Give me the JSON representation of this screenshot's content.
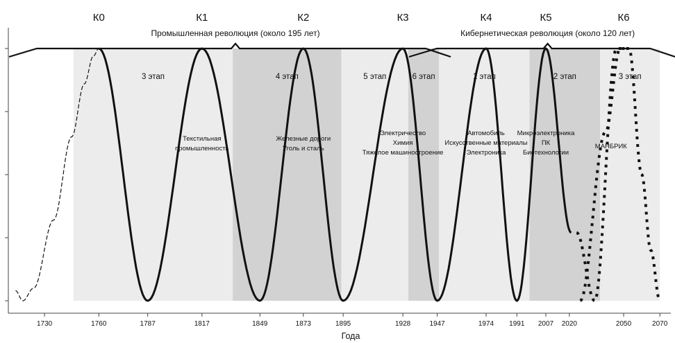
{
  "chart_data": {
    "type": "line",
    "title": "",
    "xlabel": "Года",
    "ylabel": "",
    "xlim": [
      1710,
      2073
    ],
    "ylim": [
      0,
      1
    ],
    "x_ticks": [
      1730,
      1760,
      1787,
      1817,
      1849,
      1873,
      1895,
      1928,
      1947,
      1974,
      1991,
      2007,
      2020,
      2050,
      2070
    ],
    "y_ticks": [
      0,
      0.25,
      0.5,
      0.75,
      1
    ],
    "waves": [
      {
        "label": "К0",
        "peak": 1760
      },
      {
        "label": "К1",
        "peak": 1817
      },
      {
        "label": "К2",
        "peak": 1873
      },
      {
        "label": "К3",
        "peak": 1928
      },
      {
        "label": "К4",
        "peak": 1974
      },
      {
        "label": "К5",
        "peak": 2007
      },
      {
        "label": "К6",
        "peak": 2050
      }
    ],
    "revolutions": [
      {
        "label": "Промышленная революция (около 195 лет)",
        "start": 1725,
        "end": 1946
      },
      {
        "label": "Кибернетическая революция (около 120 лет)",
        "start": 1946,
        "end": 2070
      }
    ],
    "stages": [
      {
        "label": "3 этап",
        "start": 1746,
        "end": 1834,
        "shade": "#ececec"
      },
      {
        "label": "4 этап",
        "start": 1834,
        "end": 1894,
        "shade": "#d2d2d2"
      },
      {
        "label": "5 этап",
        "start": 1894,
        "end": 1931,
        "shade": "#ececec"
      },
      {
        "label": "6 этап",
        "start": 1931,
        "end": 1948,
        "shade": "#d2d2d2"
      },
      {
        "label": "1 этап",
        "start": 1948,
        "end": 1998,
        "shade": "#ececec"
      },
      {
        "label": "2 этап",
        "start": 1998,
        "end": 2037,
        "shade": "#d2d2d2"
      },
      {
        "label": "3 этап",
        "start": 2037,
        "end": 2070,
        "shade": "#ececec"
      }
    ],
    "industries": [
      {
        "center": 1817,
        "lines": [
          "Текстильная",
          "промышленность"
        ]
      },
      {
        "center": 1873,
        "lines": [
          "Железные дороги",
          "Уголь и сталь"
        ]
      },
      {
        "center": 1928,
        "lines": [
          "Электричество",
          "Химия",
          "Тяжелое машиностроение"
        ]
      },
      {
        "center": 1974,
        "lines": [
          "Автомобиль",
          "Искусственные материалы",
          "Электроника"
        ]
      },
      {
        "center": 2007,
        "lines": [
          "Микроэлектроника",
          "ПК",
          "Биотехнологии"
        ]
      },
      {
        "center": 2043,
        "lines": [
          "МАНБРИК"
        ]
      }
    ],
    "series": [
      {
        "style": "dashed",
        "x": [
          1714,
          1718,
          1724,
          1735,
          1745,
          1752,
          1757,
          1760
        ],
        "y": [
          0.04,
          0,
          0.05,
          0.32,
          0.65,
          0.86,
          0.97,
          1
        ]
      },
      {
        "style": "solid",
        "x": [
          1760,
          1787,
          1817,
          1849,
          1873,
          1895,
          1928,
          1947,
          1974,
          1991,
          2007,
          2021
        ],
        "y": [
          1,
          0,
          1,
          0,
          1,
          0,
          1,
          0,
          1,
          0,
          1,
          0.27
        ]
      },
      {
        "style": "dotted",
        "x": [
          2024,
          2034,
          2046,
          2053,
          2060,
          2065,
          2070
        ],
        "y": [
          0.27,
          0,
          1,
          1,
          0.5,
          0.2,
          0
        ]
      },
      {
        "style": "dotted",
        "x": [
          2026,
          2040,
          2048,
          2052
        ],
        "y": [
          0,
          0.67,
          1,
          1
        ]
      }
    ],
    "grid": false
  }
}
